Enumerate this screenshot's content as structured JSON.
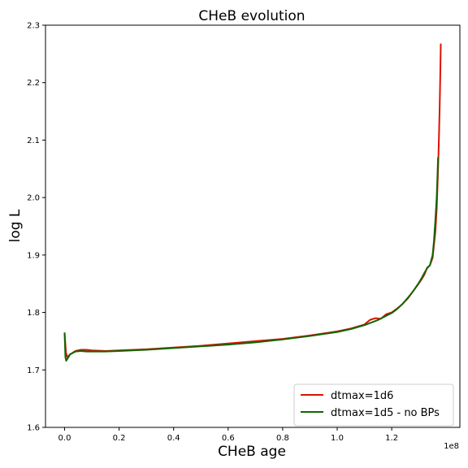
{
  "chart_data": {
    "type": "line",
    "title": "CHeB evolution",
    "xlabel": "CHeB age",
    "ylabel": "log L",
    "x_offset_label": "1e8",
    "xlim": [
      -0.07,
      1.45
    ],
    "ylim": [
      1.6,
      2.3
    ],
    "xticks": [
      0.0,
      0.2,
      0.4,
      0.6,
      0.8,
      1.0,
      1.2
    ],
    "xtick_labels": [
      "0.0",
      "0.2",
      "0.4",
      "0.6",
      "0.8",
      "1.0",
      "1.2"
    ],
    "yticks": [
      1.6,
      1.7,
      1.8,
      1.9,
      2.0,
      2.1,
      2.2,
      2.3
    ],
    "ytick_labels": [
      "1.6",
      "1.7",
      "1.8",
      "1.9",
      "2.0",
      "2.1",
      "2.2",
      "2.3"
    ],
    "grid": false,
    "legend_position": "bottom-right",
    "series": [
      {
        "name": "dtmax=1d6",
        "color": "#dd1100",
        "x": [
          0.0,
          0.005,
          0.01,
          0.02,
          0.04,
          0.06,
          0.08,
          0.1,
          0.15,
          0.2,
          0.3,
          0.4,
          0.5,
          0.6,
          0.7,
          0.8,
          0.9,
          1.0,
          1.05,
          1.1,
          1.12,
          1.14,
          1.16,
          1.18,
          1.2,
          1.22,
          1.24,
          1.26,
          1.28,
          1.3,
          1.31,
          1.32,
          1.33,
          1.34,
          1.35,
          1.36,
          1.365,
          1.37,
          1.373,
          1.376,
          1.378,
          1.38
        ],
        "y": [
          1.765,
          1.73,
          1.722,
          1.727,
          1.733,
          1.735,
          1.735,
          1.734,
          1.733,
          1.734,
          1.736,
          1.739,
          1.742,
          1.746,
          1.75,
          1.754,
          1.76,
          1.767,
          1.772,
          1.779,
          1.787,
          1.79,
          1.789,
          1.797,
          1.8,
          1.807,
          1.815,
          1.825,
          1.838,
          1.851,
          1.858,
          1.866,
          1.878,
          1.882,
          1.895,
          1.94,
          1.98,
          2.05,
          2.1,
          2.16,
          2.21,
          2.268
        ]
      },
      {
        "name": "dtmax=1d5 - no BPs",
        "color": "#116600",
        "x": [
          0.0,
          0.003,
          0.006,
          0.01,
          0.02,
          0.04,
          0.06,
          0.08,
          0.1,
          0.15,
          0.2,
          0.3,
          0.4,
          0.5,
          0.6,
          0.7,
          0.8,
          0.9,
          1.0,
          1.05,
          1.1,
          1.15,
          1.2,
          1.22,
          1.24,
          1.26,
          1.28,
          1.3,
          1.31,
          1.32,
          1.33,
          1.34,
          1.35,
          1.355,
          1.36,
          1.365,
          1.368,
          1.37
        ],
        "y": [
          1.765,
          1.722,
          1.716,
          1.719,
          1.727,
          1.732,
          1.733,
          1.732,
          1.732,
          1.732,
          1.733,
          1.735,
          1.738,
          1.741,
          1.744,
          1.748,
          1.753,
          1.759,
          1.766,
          1.771,
          1.778,
          1.787,
          1.799,
          1.806,
          1.815,
          1.826,
          1.838,
          1.852,
          1.86,
          1.869,
          1.877,
          1.882,
          1.9,
          1.925,
          1.96,
          2.0,
          2.04,
          2.07
        ]
      }
    ]
  }
}
